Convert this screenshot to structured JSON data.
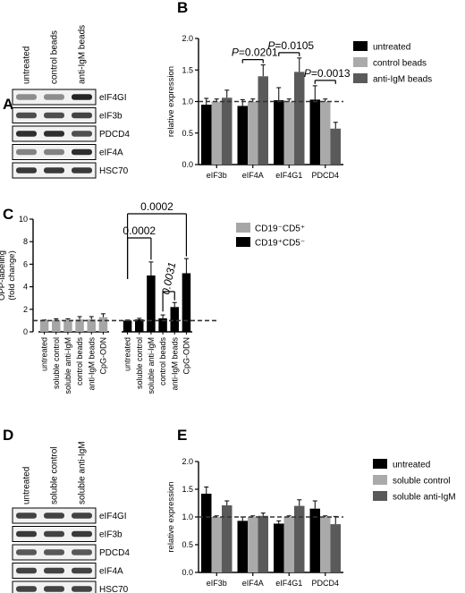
{
  "panels": {
    "A": {
      "letter": "A",
      "lanes": [
        "untreated",
        "control beads",
        "anti-IgM beads"
      ],
      "bands": [
        {
          "label": "eIF4GI",
          "intensity": [
            0.45,
            0.45,
            0.95
          ]
        },
        {
          "label": "eIF3b",
          "intensity": [
            0.75,
            0.75,
            0.8
          ]
        },
        {
          "label": "PDCD4",
          "intensity": [
            0.9,
            0.9,
            0.75
          ]
        },
        {
          "label": "eIF4A",
          "intensity": [
            0.5,
            0.5,
            0.9
          ]
        },
        {
          "label": "HSC70",
          "intensity": [
            0.85,
            0.85,
            0.85
          ]
        }
      ]
    },
    "D": {
      "letter": "D",
      "lanes": [
        "untreated",
        "soluble control",
        "soluble anti-IgM"
      ],
      "bands": [
        {
          "label": "eIF4GI",
          "intensity": [
            0.8,
            0.8,
            0.8
          ]
        },
        {
          "label": "eIF3b",
          "intensity": [
            0.85,
            0.8,
            0.85
          ]
        },
        {
          "label": "PDCD4",
          "intensity": [
            0.7,
            0.7,
            0.7
          ]
        },
        {
          "label": "eIF4A",
          "intensity": [
            0.8,
            0.8,
            0.8
          ]
        },
        {
          "label": "HSC70",
          "intensity": [
            0.8,
            0.8,
            0.8
          ]
        }
      ]
    }
  },
  "chart_data": [
    {
      "id": "B",
      "letter": "B",
      "type": "bar",
      "ylabel": "relative expression",
      "ylim": [
        0,
        2.0
      ],
      "yticks": [
        "0.0",
        "0.5",
        "1.0",
        "1.5",
        "2.0"
      ],
      "categories": [
        "eIF3b",
        "eIF4A",
        "eIF4G1",
        "PDCD4"
      ],
      "reference_line": 1.0,
      "series": [
        {
          "name": "untreated",
          "color": "#000000",
          "values": [
            0.95,
            0.93,
            1.02,
            1.03
          ],
          "errors": [
            0.1,
            0.1,
            0.2,
            0.22
          ]
        },
        {
          "name": "control beads",
          "color": "#aaaaaa",
          "values": [
            1.0,
            1.0,
            1.0,
            1.0
          ],
          "errors": [
            0.04,
            0.04,
            0.04,
            0.04
          ]
        },
        {
          "name": "anti-IgM beads",
          "color": "#5a5a5a",
          "values": [
            1.06,
            1.4,
            1.47,
            0.57
          ],
          "errors": [
            0.12,
            0.18,
            0.22,
            0.1
          ]
        }
      ],
      "annotations": [
        {
          "category": 1,
          "text": "P=0.0201"
        },
        {
          "category": 2,
          "text": "P=0.0105"
        },
        {
          "category": 3,
          "text": "P=0.0013"
        }
      ],
      "legend": "right"
    },
    {
      "id": "C",
      "letter": "C",
      "type": "bar",
      "ylabel": "OPP-labeling (fold change)",
      "ylim": [
        0,
        10
      ],
      "yticks": [
        "0",
        "2",
        "4",
        "6",
        "8",
        "10"
      ],
      "reference_line": 1.0,
      "groups": [
        {
          "name": "CD19⁻CD5⁺",
          "color": "#a6a6a6",
          "categories": [
            "untreated",
            "soluble control",
            "soluble anti-IgM",
            "control beads",
            "anti-IgM beads",
            "CpG-ODN"
          ],
          "values": [
            1.0,
            1.05,
            1.05,
            1.1,
            1.1,
            1.3
          ],
          "errors": [
            0.05,
            0.1,
            0.1,
            0.25,
            0.25,
            0.3
          ]
        },
        {
          "name": "CD19⁺CD5⁻",
          "color": "#000000",
          "categories": [
            "untreated",
            "soluble control",
            "soluble anti-IgM",
            "control beads",
            "anti-IgM beads",
            "CpG-ODN"
          ],
          "values": [
            1.0,
            1.1,
            5.0,
            1.2,
            2.2,
            5.2
          ],
          "errors": [
            0.05,
            0.1,
            1.2,
            0.3,
            0.4,
            1.3
          ]
        }
      ],
      "annotations": [
        {
          "text": "0.0002",
          "from": 0,
          "to": 5
        },
        {
          "text": "0.0002",
          "from": 0,
          "to": 2
        },
        {
          "text": "0.0031",
          "from": 3,
          "to": 4
        }
      ],
      "legend": "right"
    },
    {
      "id": "E",
      "letter": "E",
      "type": "bar",
      "ylabel": "relative expression",
      "ylim": [
        0,
        2.0
      ],
      "yticks": [
        "0.0",
        "0.5",
        "1.0",
        "1.5",
        "2.0"
      ],
      "categories": [
        "eIF3b",
        "eIF4A",
        "eIF4G1",
        "PDCD4"
      ],
      "reference_line": 1.0,
      "series": [
        {
          "name": "untreated",
          "color": "#000000",
          "values": [
            1.42,
            0.93,
            0.88,
            1.15
          ],
          "errors": [
            0.12,
            0.07,
            0.05,
            0.14
          ]
        },
        {
          "name": "soluble control",
          "color": "#aaaaaa",
          "values": [
            1.0,
            1.0,
            1.0,
            1.0
          ],
          "errors": [
            0.02,
            0.02,
            0.02,
            0.02
          ]
        },
        {
          "name": "soluble anti-IgM",
          "color": "#5a5a5a",
          "values": [
            1.21,
            1.02,
            1.2,
            0.87
          ],
          "errors": [
            0.08,
            0.05,
            0.11,
            0.14
          ]
        }
      ],
      "legend": "right"
    }
  ]
}
